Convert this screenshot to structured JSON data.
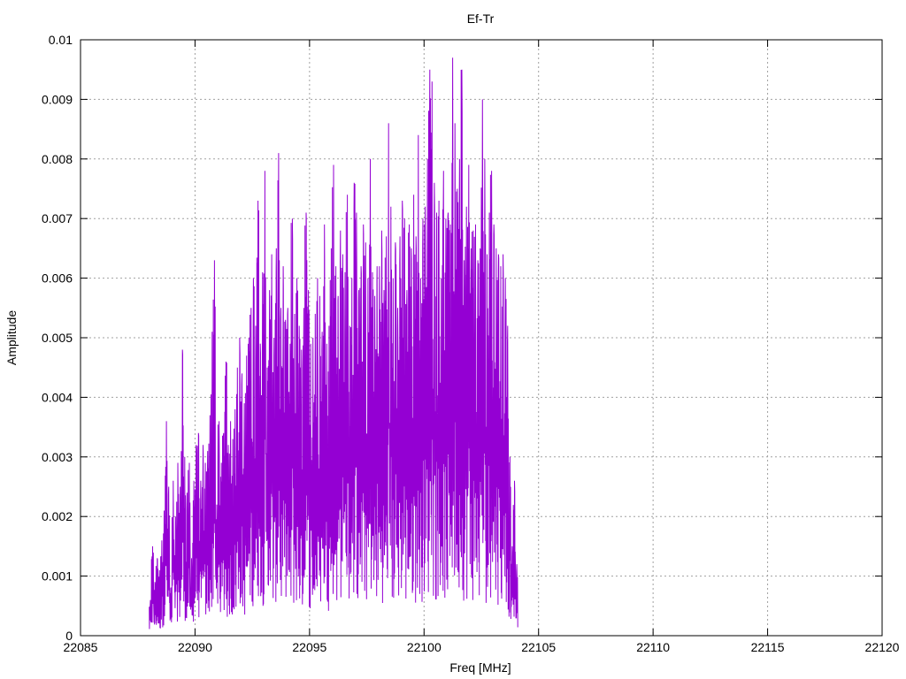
{
  "chart_data": {
    "type": "line",
    "title": "Ef-Tr",
    "xlabel": "Freq [MHz]",
    "ylabel": "Amplitude",
    "xlim": [
      22085,
      22120
    ],
    "ylim": [
      0,
      0.01
    ],
    "xticks": [
      "22085",
      "22090",
      "22095",
      "22100",
      "22105",
      "22110",
      "22115",
      "22120"
    ],
    "yticks": [
      "0",
      "0.001",
      "0.002",
      "0.003",
      "0.004",
      "0.005",
      "0.006",
      "0.007",
      "0.008",
      "0.009",
      "0.01"
    ],
    "grid": true,
    "series_color": "#9400D3",
    "series": [
      {
        "x_start": 22088.0,
        "x_step": 0.1,
        "peaks": [
          0.0006,
          0.0015,
          0.0009,
          0.0013,
          0.0011,
          0.0016,
          0.0021,
          0.0036,
          0.0025,
          0.0008,
          0.0026,
          0.002,
          0.0029,
          0.0025,
          0.0048,
          0.003,
          0.0024,
          0.0029,
          0.0013,
          0.0026,
          0.0032,
          0.0034,
          0.0026,
          0.0032,
          0.0029,
          0.0031,
          0.0037,
          0.0051,
          0.0063,
          0.0022,
          0.0036,
          0.0029,
          0.0034,
          0.0046,
          0.0032,
          0.0036,
          0.0033,
          0.0038,
          0.0045,
          0.005,
          0.0044,
          0.0039,
          0.0047,
          0.005,
          0.0055,
          0.006,
          0.0052,
          0.0073,
          0.0049,
          0.0061,
          0.0078,
          0.0045,
          0.0058,
          0.0064,
          0.005,
          0.0065,
          0.0081,
          0.0055,
          0.0062,
          0.0053,
          0.0055,
          0.0049,
          0.007,
          0.0054,
          0.006,
          0.0052,
          0.0048,
          0.0055,
          0.0071,
          0.0058,
          0.0049,
          0.005,
          0.0054,
          0.006,
          0.0057,
          0.0051,
          0.0069,
          0.0049,
          0.0052,
          0.0065,
          0.0079,
          0.0062,
          0.0057,
          0.0068,
          0.0064,
          0.0061,
          0.0074,
          0.0052,
          0.006,
          0.0076,
          0.0071,
          0.0058,
          0.0062,
          0.0069,
          0.0066,
          0.006,
          0.008,
          0.0061,
          0.0057,
          0.0062,
          0.0062,
          0.0068,
          0.0058,
          0.0067,
          0.0086,
          0.0072,
          0.006,
          0.0066,
          0.0055,
          0.0067,
          0.0073,
          0.007,
          0.0058,
          0.0069,
          0.0065,
          0.0074,
          0.0067,
          0.0084,
          0.006,
          0.007,
          0.0072,
          0.008,
          0.0095,
          0.0093,
          0.0076,
          0.0071,
          0.0073,
          0.006,
          0.0078,
          0.007,
          0.0071,
          0.0069,
          0.0097,
          0.0086,
          0.0075,
          0.008,
          0.0095,
          0.0063,
          0.0072,
          0.0079,
          0.0065,
          0.0068,
          0.0069,
          0.0063,
          0.0065,
          0.009,
          0.008,
          0.0064,
          0.0071,
          0.0078,
          0.0069,
          0.0065,
          0.0064,
          0.0062,
          0.0064,
          0.006,
          0.0052,
          0.003,
          0.0015,
          0.0026,
          0.0012
        ]
      }
    ]
  }
}
